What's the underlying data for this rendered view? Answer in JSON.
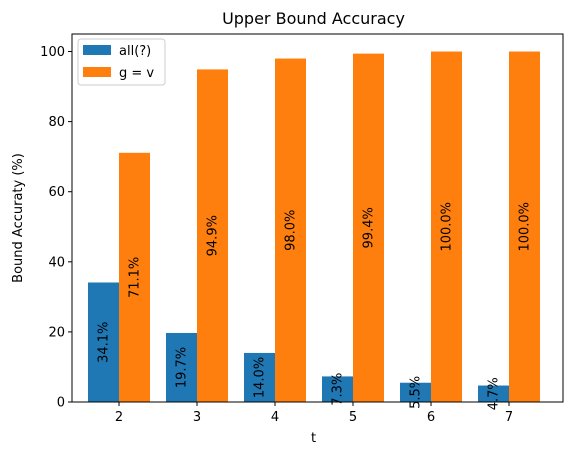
{
  "chart_data": {
    "type": "bar",
    "title": "Upper Bound Accuracy",
    "xlabel": "t",
    "ylabel": "Bound Accuraty (%)",
    "categories": [
      "2",
      "3",
      "4",
      "5",
      "6",
      "7"
    ],
    "ylim": [
      0,
      105
    ],
    "yticks": [
      0,
      20,
      40,
      60,
      80,
      100
    ],
    "grid": false,
    "legend_position": "top-left",
    "series": [
      {
        "name": "all(?)",
        "color": "#1f77b4",
        "values": [
          34.1,
          19.7,
          14.0,
          7.3,
          5.5,
          4.7
        ],
        "labels": [
          "34.1%",
          "19.7%",
          "14.0%",
          "7.3%",
          "5.5%",
          "4.7%"
        ]
      },
      {
        "name": "g = v",
        "color": "#ff7f0e",
        "values": [
          71.1,
          94.9,
          98.0,
          99.4,
          100.0,
          100.0
        ],
        "labels": [
          "71.1%",
          "94.9%",
          "98.0%",
          "99.4%",
          "100.0%",
          "100.0%"
        ]
      }
    ]
  }
}
